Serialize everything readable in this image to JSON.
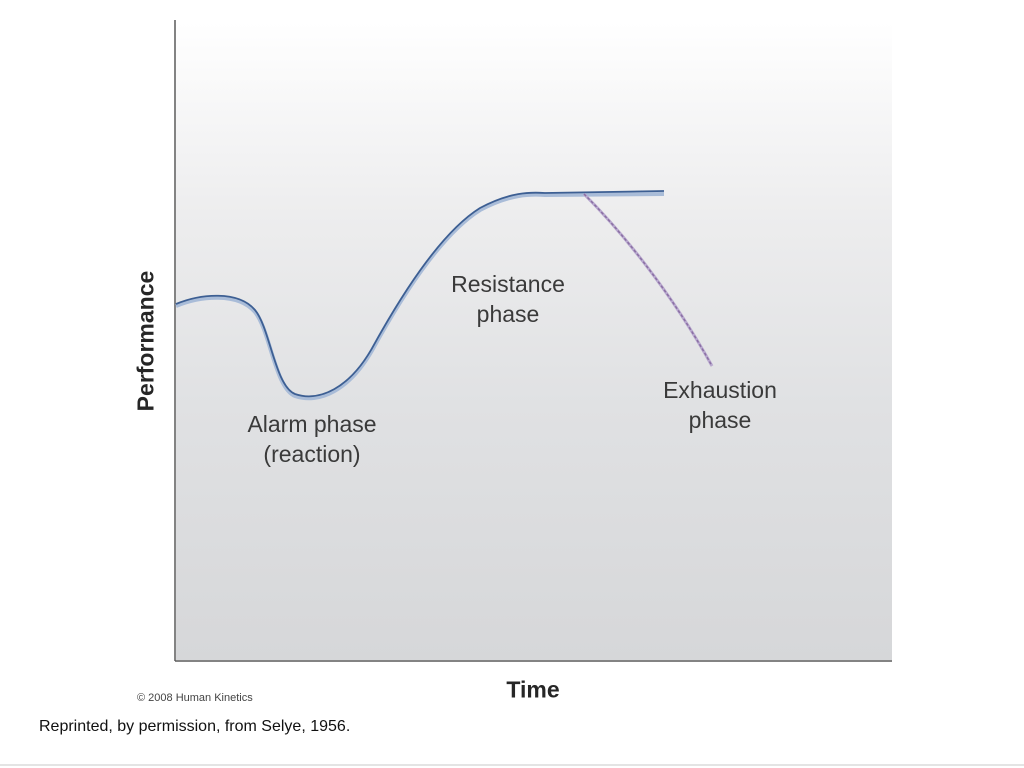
{
  "diagram": {
    "y_axis_title": "Performance",
    "x_axis_title": "Time",
    "phases": [
      {
        "id": "alarm",
        "label": "Alarm phase\n(reaction)"
      },
      {
        "id": "resistance",
        "label": "Resistance\nphase"
      },
      {
        "id": "exhaustion",
        "label": "Exhaustion\nphase"
      }
    ],
    "colors": {
      "curve": "#3d5f93",
      "curve_shadow": "#a9bcd8",
      "exhaustion_curve": "#8a6fa3",
      "axis": "#5a5a5a"
    }
  },
  "footer": {
    "copyright": "© 2008 Human Kinetics",
    "credit": "Reprinted, by permission, from Selye, 1956."
  }
}
